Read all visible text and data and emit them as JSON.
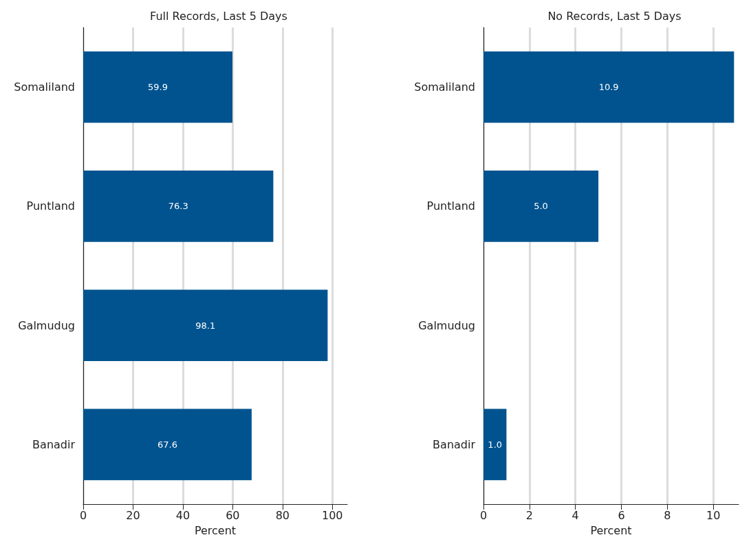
{
  "chart_data": [
    {
      "type": "bar",
      "orientation": "horizontal",
      "title": "Full Records, Last 5 Days",
      "xlabel": "Percent",
      "categories": [
        "Somaliland",
        "Puntland",
        "Galmudug",
        "Banadir"
      ],
      "values": [
        59.9,
        76.3,
        98.1,
        67.6
      ],
      "value_labels": [
        "59.9",
        "76.3",
        "98.1",
        "67.6"
      ],
      "color": "#00538f",
      "xlim": [
        0,
        106
      ],
      "xticks": [
        0,
        20,
        40,
        60,
        80,
        100
      ],
      "grid": "x"
    },
    {
      "type": "bar",
      "orientation": "horizontal",
      "title": "No Records, Last 5 Days",
      "xlabel": "Percent",
      "categories": [
        "Somaliland",
        "Puntland",
        "Galmudug",
        "Banadir"
      ],
      "values": [
        10.9,
        5.0,
        null,
        1.0
      ],
      "value_labels": [
        "10.9",
        "5.0",
        null,
        "1.0"
      ],
      "color": "#00538f",
      "xlim": [
        0,
        11.1
      ],
      "xticks": [
        0,
        2,
        4,
        6,
        8,
        10
      ],
      "grid": "x"
    }
  ]
}
